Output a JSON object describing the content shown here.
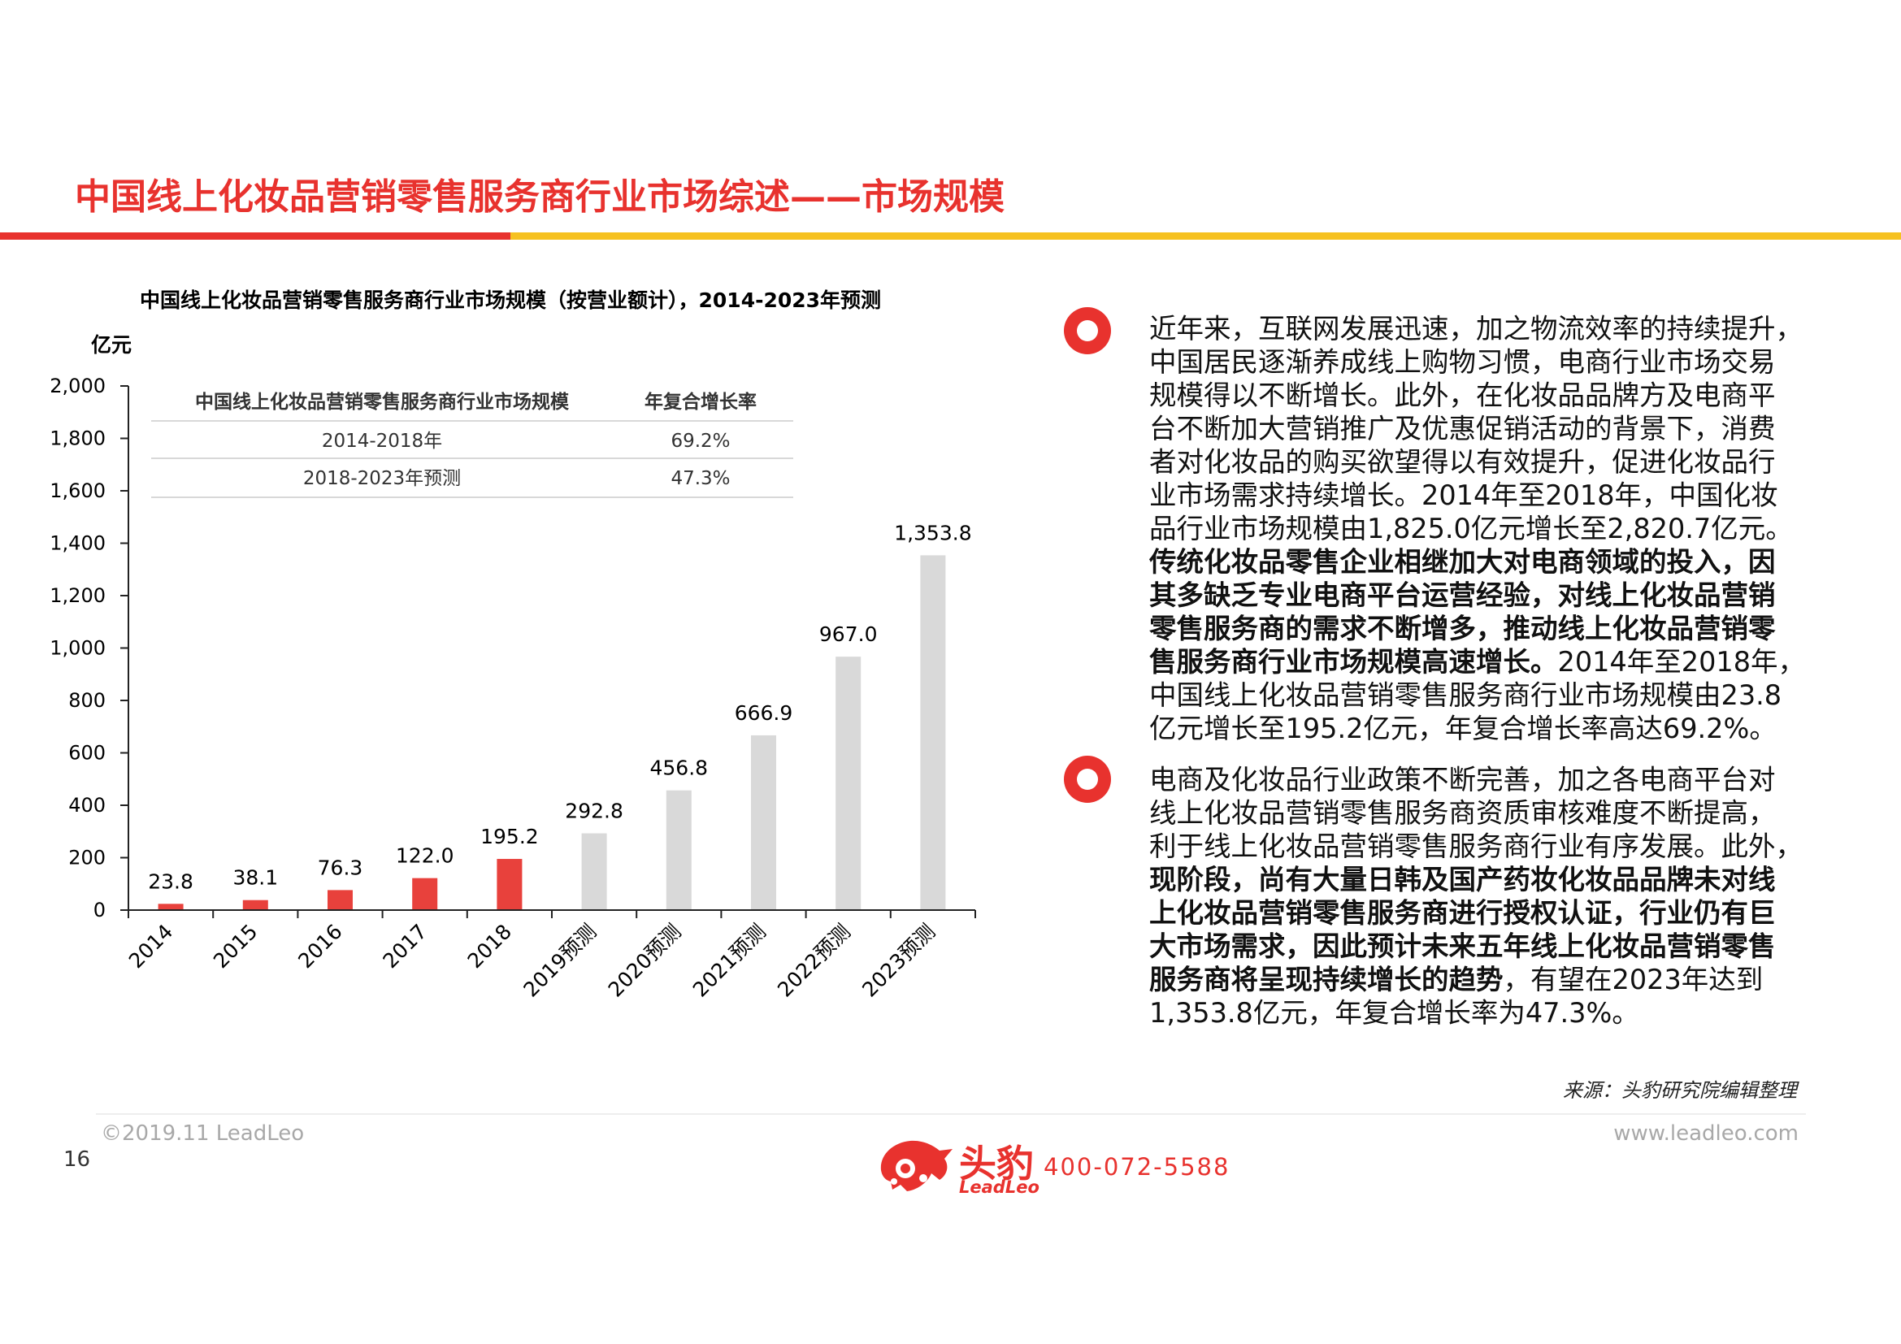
{
  "page": {
    "title": "中国线上化妆品营销零售服务商行业市场综述——市场规模",
    "page_number": "16"
  },
  "chart_data": {
    "type": "bar",
    "title": "中国线上化妆品营销零售服务商行业市场规模（按营业额计），2014-2023年预测",
    "ylabel": "亿元",
    "ylim": [
      0,
      2000
    ],
    "yticks": [
      "2,000",
      "1,800",
      "1,600",
      "1,400",
      "1,200",
      "1,000",
      "800",
      "600",
      "400",
      "200",
      "0"
    ],
    "ytick_values": [
      2000,
      1800,
      1600,
      1400,
      1200,
      1000,
      800,
      600,
      400,
      200,
      0
    ],
    "categories": [
      "2014",
      "2015",
      "2016",
      "2017",
      "2018",
      "2019预测",
      "2020预测",
      "2021预测",
      "2022预测",
      "2023预测"
    ],
    "values": [
      23.8,
      38.1,
      76.3,
      122.0,
      195.2,
      292.8,
      456.8,
      666.9,
      967.0,
      1353.8
    ],
    "value_labels": [
      "23.8",
      "38.1",
      "76.3",
      "122.0",
      "195.2",
      "292.8",
      "456.8",
      "666.9",
      "967.0",
      "1,353.8"
    ],
    "colors": {
      "actual": "#e8413c",
      "forecast": "#d9d9d9"
    },
    "forecast_from_index": 5,
    "inset_table": {
      "headers": [
        "中国线上化妆品营销零售服务商行业市场规模",
        "年复合增长率"
      ],
      "rows": [
        [
          "2014-2018年",
          "69.2%"
        ],
        [
          "2018-2023年预测",
          "47.3%"
        ]
      ]
    }
  },
  "paragraphs": [
    {
      "lines": [
        [
          {
            "t": "近年来，互联网发展迅速，加之物流效率的持续提升，",
            "b": false
          }
        ],
        [
          {
            "t": "中国居民逐渐养成线上购物习惯，电商行业市场交易",
            "b": false
          }
        ],
        [
          {
            "t": "规模得以不断增长。此外，在化妆品品牌方及电商平",
            "b": false
          }
        ],
        [
          {
            "t": "台不断加大营销推广及优惠促销活动的背景下，消费",
            "b": false
          }
        ],
        [
          {
            "t": "者对化妆品的购买欲望得以有效提升，促进化妆品行",
            "b": false
          }
        ],
        [
          {
            "t": "业市场需求持续增长。2014年至2018年，中国化妆",
            "b": false
          }
        ],
        [
          {
            "t": "品行业市场规模由1,825.0亿元增长至2,820.7亿元。",
            "b": false
          }
        ],
        [
          {
            "t": "传统化妆品零售企业相继加大对电商领域的投入，因",
            "b": true
          }
        ],
        [
          {
            "t": "其多缺乏专业电商平台运营经验，对线上化妆品营销",
            "b": true
          }
        ],
        [
          {
            "t": "零售服务商的需求不断增多，推动线上化妆品营销零",
            "b": true
          }
        ],
        [
          {
            "t": "售服务商行业市场规模高速增长。",
            "b": true
          },
          {
            "t": "2014年至2018年，",
            "b": false
          }
        ],
        [
          {
            "t": "中国线上化妆品营销零售服务商行业市场规模由23.8",
            "b": false
          }
        ],
        [
          {
            "t": "亿元增长至195.2亿元，年复合增长率高达69.2%。",
            "b": false
          }
        ]
      ]
    },
    {
      "lines": [
        [
          {
            "t": "电商及化妆品行业政策不断完善，加之各电商平台对",
            "b": false
          }
        ],
        [
          {
            "t": "线上化妆品营销零售服务商资质审核难度不断提高，",
            "b": false
          }
        ],
        [
          {
            "t": "利于线上化妆品营销零售服务商行业有序发展。此外，",
            "b": false
          }
        ],
        [
          {
            "t": "现阶段，尚有大量日韩及国产药妆化妆品品牌未对线",
            "b": true
          }
        ],
        [
          {
            "t": "上化妆品营销零售服务商进行授权认证，行业仍有巨",
            "b": true
          }
        ],
        [
          {
            "t": "大市场需求，因此预计未来五年线上化妆品营销零售",
            "b": true
          }
        ],
        [
          {
            "t": "服务商将呈现持续增长的趋势",
            "b": true
          },
          {
            "t": "，有望在2023年达到",
            "b": false
          }
        ],
        [
          {
            "t": "1,353.8亿元，年复合增长率为47.3%。",
            "b": false
          }
        ]
      ]
    }
  ],
  "footer": {
    "source": "来源：头豹研究院编辑整理",
    "copyright": "©2019.11 LeadLeo",
    "website": "www.leadleo.com",
    "logo_cn": "头豹",
    "logo_en": "LeadLeo",
    "phone": "400-072-5588"
  }
}
